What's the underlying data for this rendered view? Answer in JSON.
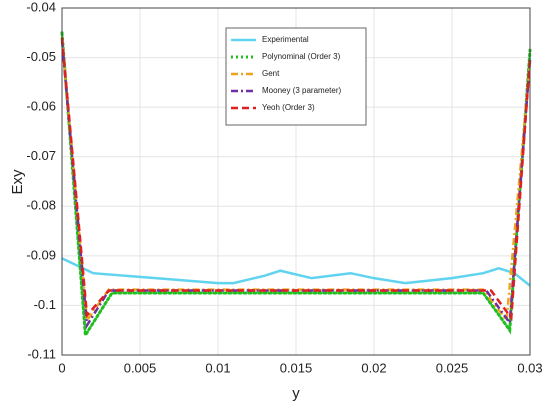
{
  "chart_data": {
    "type": "line",
    "x_label": "y",
    "y_label": "Exy",
    "xlim": [
      0,
      0.03
    ],
    "xticks": [
      0,
      0.005,
      0.01,
      0.015,
      0.02,
      0.025,
      0.03
    ],
    "ylim": [
      -0.11,
      -0.04
    ],
    "yticks": [
      -0.11,
      -0.1,
      -0.09,
      -0.08,
      -0.07,
      -0.06,
      -0.05,
      -0.04
    ],
    "grid": true,
    "legend": "upper center",
    "series": [
      {
        "name": "Experimental",
        "color": "#5fd3ef",
        "style": "solid",
        "x": [
          0,
          0.001,
          0.002,
          0.004,
          0.006,
          0.008,
          0.01,
          0.011,
          0.013,
          0.014,
          0.016,
          0.0185,
          0.02,
          0.022,
          0.025,
          0.027,
          0.028,
          0.029,
          0.03
        ],
        "values": [
          -0.0905,
          -0.092,
          -0.0935,
          -0.094,
          -0.0945,
          -0.095,
          -0.0955,
          -0.0955,
          -0.094,
          -0.093,
          -0.0945,
          -0.0935,
          -0.0945,
          -0.0955,
          -0.0945,
          -0.0935,
          -0.0925,
          -0.0935,
          -0.096
        ]
      },
      {
        "name": "Polynominal (Order 3)",
        "color": "#1fbf1f",
        "style": "dotted",
        "x": [
          0,
          0.0015,
          0.0032,
          0.027,
          0.0287,
          0.03
        ],
        "values": [
          -0.045,
          -0.106,
          -0.0975,
          -0.0975,
          -0.105,
          -0.0485
        ]
      },
      {
        "name": "Gent",
        "color": "#f0a21c",
        "style": "dashdot",
        "x": [
          0,
          0.0016,
          0.003,
          0.027,
          0.0285,
          0.03
        ],
        "values": [
          -0.046,
          -0.103,
          -0.0968,
          -0.0968,
          -0.103,
          -0.051
        ]
      },
      {
        "name": "Mooney (3 parameter)",
        "color": "#7030a0",
        "style": "dashdot",
        "x": [
          0,
          0.0016,
          0.003,
          0.0272,
          0.0287,
          0.03
        ],
        "values": [
          -0.0465,
          -0.104,
          -0.097,
          -0.097,
          -0.1035,
          -0.0505
        ]
      },
      {
        "name": "Yeoh (Order 3)",
        "color": "#e02020",
        "style": "dashed",
        "x": [
          0,
          0.0016,
          0.003,
          0.0275,
          0.0288,
          0.03
        ],
        "values": [
          -0.046,
          -0.102,
          -0.097,
          -0.097,
          -0.1025,
          -0.05
        ]
      }
    ]
  }
}
